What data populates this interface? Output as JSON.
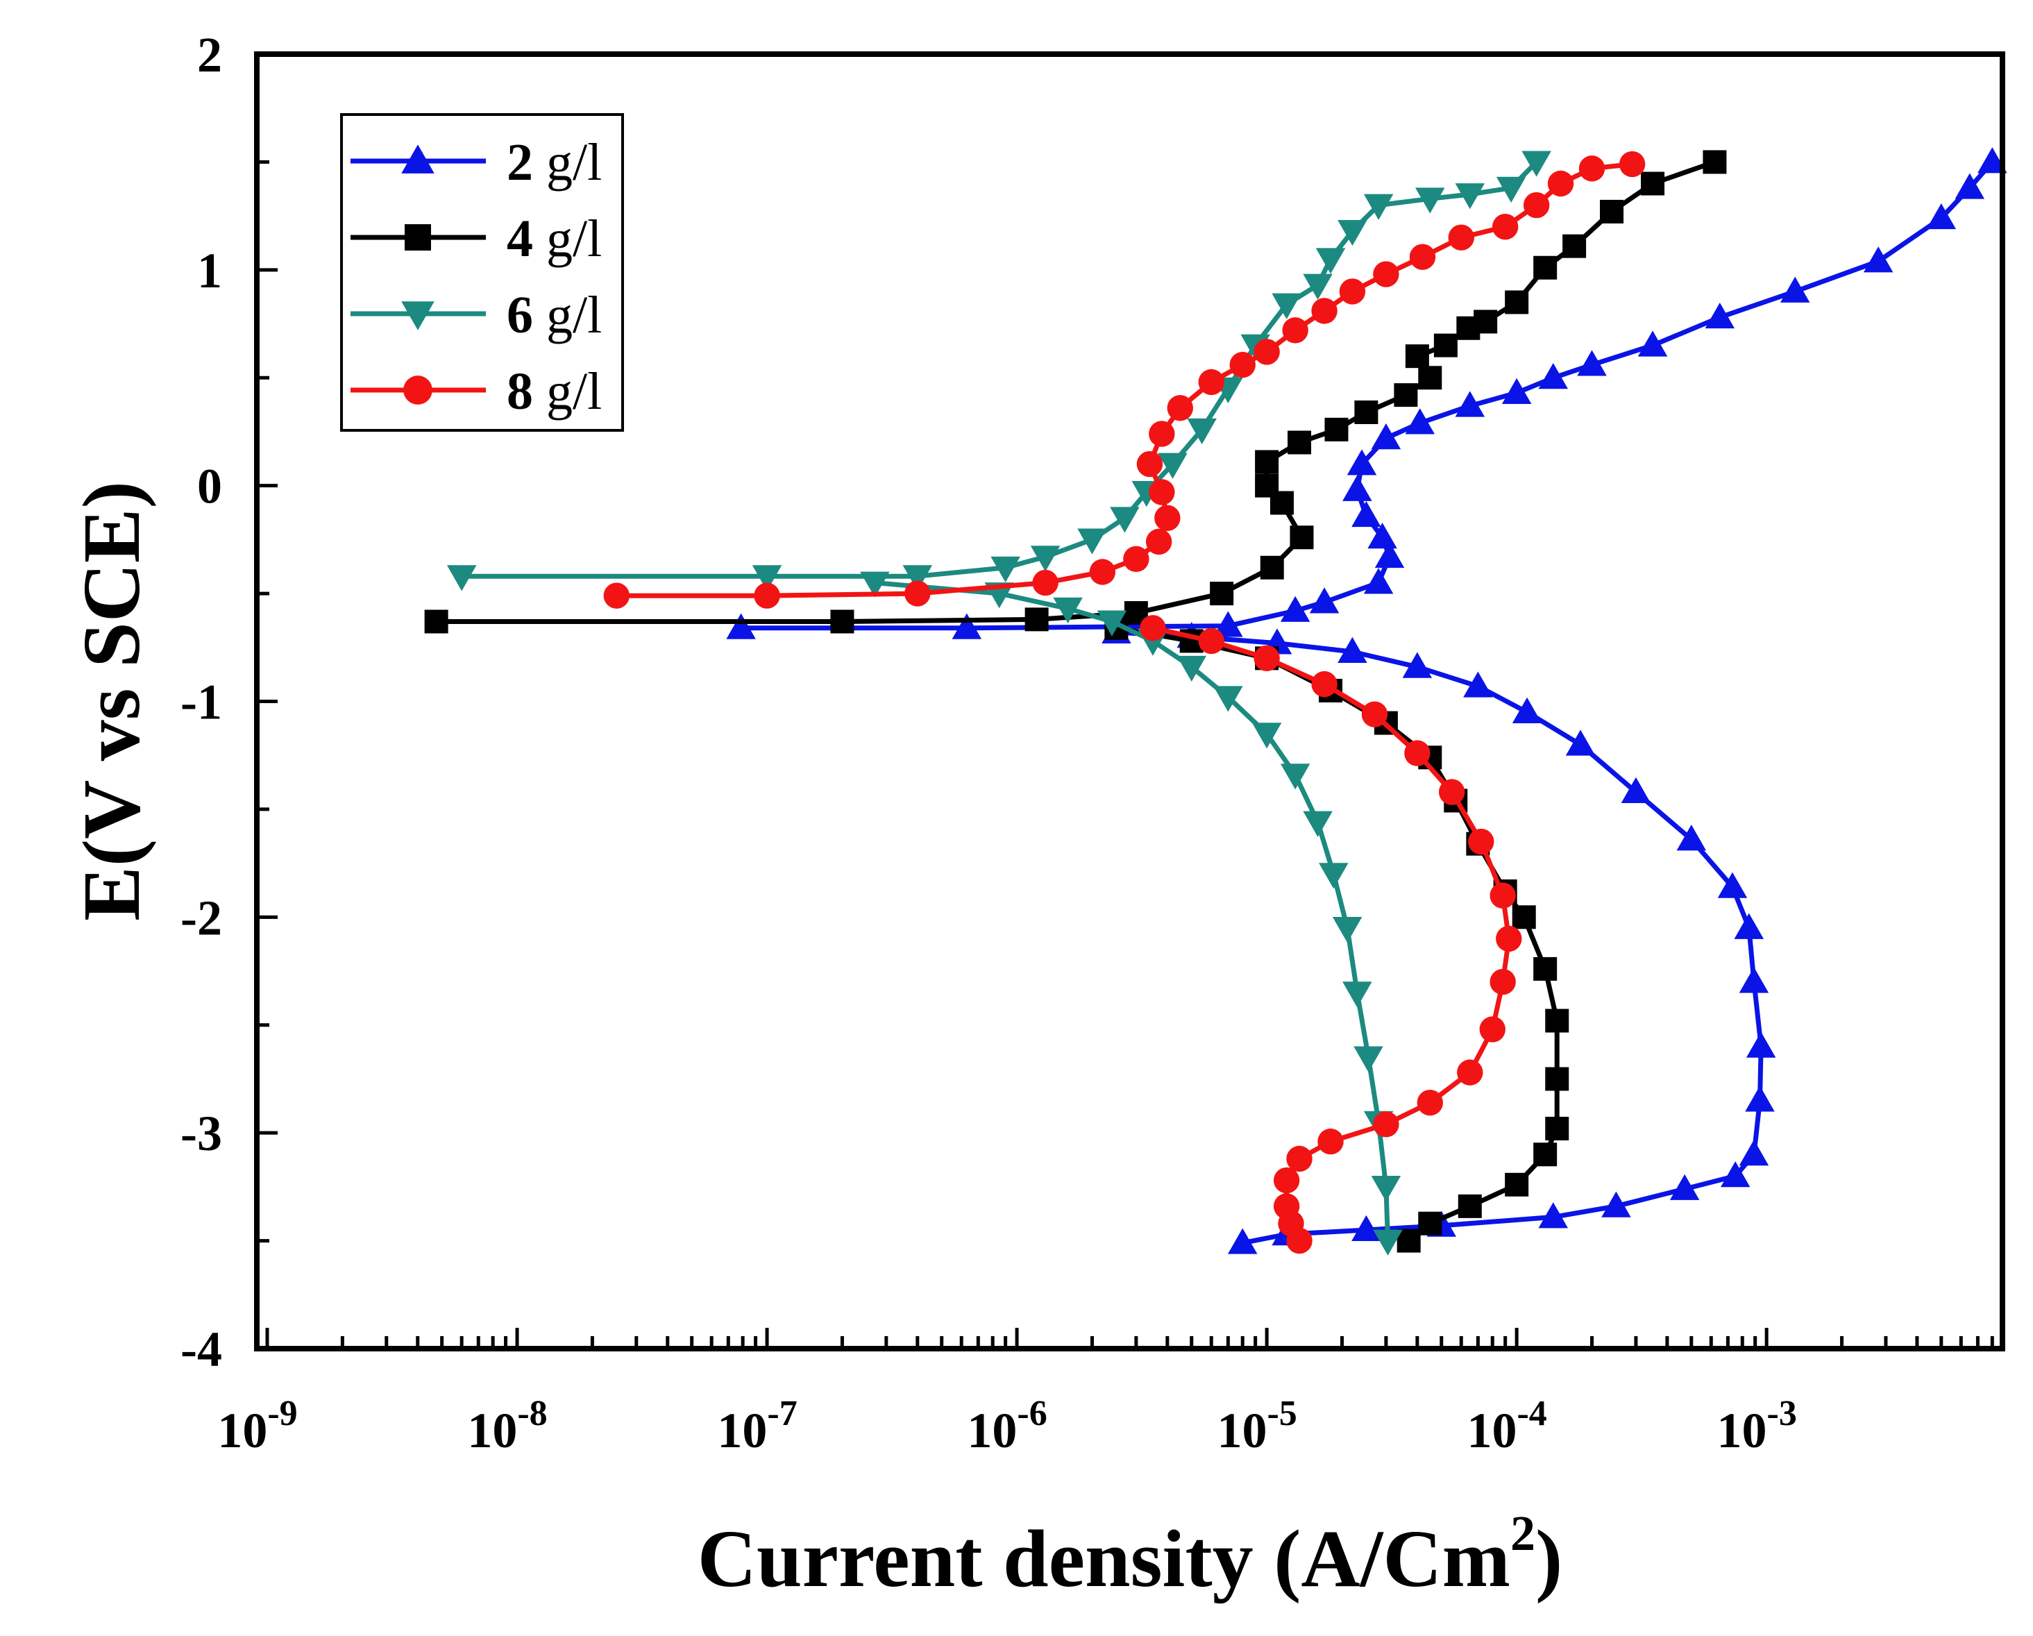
{
  "chart_data": {
    "type": "line",
    "title": "",
    "xlabel": "Current density (A/Cm",
    "xlabel_superscript": "2",
    "xlabel_suffix": ")",
    "ylabel": "E(V vs SCE)",
    "xscale": "log",
    "xlim_log10": [
      -9,
      -2.07
    ],
    "ylim": [
      -4,
      2
    ],
    "x_ticks": [
      {
        "base": "10",
        "exp": "-9"
      },
      {
        "base": "10",
        "exp": "-8"
      },
      {
        "base": "10",
        "exp": "-7"
      },
      {
        "base": "10",
        "exp": "-6"
      },
      {
        "base": "10",
        "exp": "-5"
      },
      {
        "base": "10",
        "exp": "-4"
      },
      {
        "base": "10",
        "exp": "-3"
      }
    ],
    "y_ticks": [
      "-4",
      "-3",
      "-2",
      "-1",
      "0",
      "1",
      "2"
    ],
    "legend_position": "top-left",
    "series": [
      {
        "name": "2 g/l",
        "num": "2",
        "unit": "g/l",
        "color": "#0a14e6",
        "marker": "triangle-up",
        "points": [
          [
            7.87e-08,
            -0.66
          ],
          [
            6.3e-07,
            -0.66
          ],
          [
            7e-06,
            -0.65
          ],
          [
            1.3e-05,
            -0.58
          ],
          [
            1.7e-05,
            -0.54
          ],
          [
            2.8e-05,
            -0.45
          ],
          [
            3.1e-05,
            -0.33
          ],
          [
            2.9e-05,
            -0.24
          ],
          [
            2.5e-05,
            -0.14
          ],
          [
            2.3e-05,
            -0.02
          ],
          [
            2.4e-05,
            0.1
          ],
          [
            3e-05,
            0.22
          ],
          [
            4.1e-05,
            0.29
          ],
          [
            6.5e-05,
            0.37
          ],
          [
            0.0001,
            0.43
          ],
          [
            0.00014,
            0.5
          ],
          [
            0.0002,
            0.56
          ],
          [
            0.00035,
            0.65
          ],
          [
            0.00065,
            0.78
          ],
          [
            0.0013,
            0.9
          ],
          [
            0.0028,
            1.04
          ],
          [
            0.005,
            1.24
          ],
          [
            0.0065,
            1.38
          ],
          [
            0.008,
            1.5
          ],
          [
            null,
            null
          ],
          [
            2.5e-06,
            -0.68
          ],
          [
            5e-06,
            -0.7
          ],
          [
            1.1e-05,
            -0.73
          ],
          [
            2.2e-05,
            -0.77
          ],
          [
            4e-05,
            -0.84
          ],
          [
            7e-05,
            -0.93
          ],
          [
            0.00011,
            -1.05
          ],
          [
            0.00018,
            -1.2
          ],
          [
            0.0003,
            -1.42
          ],
          [
            0.0005,
            -1.64
          ],
          [
            0.00073,
            -1.86
          ],
          [
            0.00085,
            -2.05
          ],
          [
            0.00089,
            -2.3
          ],
          [
            0.00095,
            -2.6
          ],
          [
            0.00094,
            -2.85
          ],
          [
            0.00089,
            -3.1
          ],
          [
            0.00075,
            -3.2
          ],
          [
            0.00047,
            -3.26
          ],
          [
            0.00025,
            -3.34
          ],
          [
            0.00014,
            -3.39
          ],
          [
            5e-05,
            -3.43
          ],
          [
            2.5e-05,
            -3.45
          ],
          [
            1.2e-05,
            -3.47
          ],
          [
            8e-06,
            -3.51
          ]
        ]
      },
      {
        "name": "4 g/l",
        "num": "4",
        "unit": "g/l",
        "color": "#000000",
        "marker": "square",
        "points": [
          [
            4.75e-09,
            -0.63
          ],
          [
            2e-07,
            -0.63
          ],
          [
            1.2e-06,
            -0.62
          ],
          [
            3e-06,
            -0.59
          ],
          [
            6.6e-06,
            -0.5
          ],
          [
            1.05e-05,
            -0.38
          ],
          [
            1.38e-05,
            -0.24
          ],
          [
            1.15e-05,
            -0.08
          ],
          [
            1e-05,
            0.0
          ],
          [
            1e-05,
            0.11
          ],
          [
            1.35e-05,
            0.2
          ],
          [
            1.9e-05,
            0.26
          ],
          [
            2.5e-05,
            0.34
          ],
          [
            3.6e-05,
            0.42
          ],
          [
            4.5e-05,
            0.5
          ],
          [
            4e-05,
            0.6
          ],
          [
            5.2e-05,
            0.65
          ],
          [
            6.4e-05,
            0.73
          ],
          [
            7.5e-05,
            0.76
          ],
          [
            0.0001,
            0.85
          ],
          [
            0.00013,
            1.01
          ],
          [
            0.00017,
            1.11
          ],
          [
            0.00024,
            1.27
          ],
          [
            0.00035,
            1.4
          ],
          [
            0.00062,
            1.5
          ],
          [
            null,
            null
          ],
          [
            2.5e-06,
            -0.66
          ],
          [
            5e-06,
            -0.72
          ],
          [
            1e-05,
            -0.8
          ],
          [
            1.8e-05,
            -0.95
          ],
          [
            3e-05,
            -1.1
          ],
          [
            4.5e-05,
            -1.26
          ],
          [
            5.7e-05,
            -1.46
          ],
          [
            7e-05,
            -1.66
          ],
          [
            9e-05,
            -1.88
          ],
          [
            0.000107,
            -2.0
          ],
          [
            0.00013,
            -2.24
          ],
          [
            0.000145,
            -2.48
          ],
          [
            0.000145,
            -2.75
          ],
          [
            0.000145,
            -2.98
          ],
          [
            0.00013,
            -3.1
          ],
          [
            0.0001,
            -3.24
          ],
          [
            6.5e-05,
            -3.34
          ],
          [
            4.5e-05,
            -3.42
          ],
          [
            3.7e-05,
            -3.5
          ]
        ]
      },
      {
        "name": "6 g/l",
        "num": "6",
        "unit": "g/l",
        "color": "#1c8a80",
        "marker": "triangle-down",
        "points": [
          [
            6e-09,
            -0.42
          ],
          [
            1e-07,
            -0.42
          ],
          [
            4e-07,
            -0.42
          ],
          [
            9e-07,
            -0.38
          ],
          [
            1.3e-06,
            -0.33
          ],
          [
            2e-06,
            -0.25
          ],
          [
            2.7e-06,
            -0.15
          ],
          [
            3.3e-06,
            -0.03
          ],
          [
            4.2e-06,
            0.1
          ],
          [
            5.5e-06,
            0.26
          ],
          [
            7e-06,
            0.45
          ],
          [
            9e-06,
            0.65
          ],
          [
            1.2e-05,
            0.84
          ],
          [
            1.6e-05,
            0.93
          ],
          [
            1.8e-05,
            1.05
          ],
          [
            2.2e-05,
            1.18
          ],
          [
            2.8e-05,
            1.3
          ],
          [
            4.5e-05,
            1.33
          ],
          [
            6.5e-05,
            1.35
          ],
          [
            9.5e-05,
            1.38
          ],
          [
            0.00012,
            1.5
          ],
          [
            null,
            null
          ],
          [
            2.7e-07,
            -0.45
          ],
          [
            8.5e-07,
            -0.5
          ],
          [
            1.6e-06,
            -0.57
          ],
          [
            2.4e-06,
            -0.63
          ],
          [
            3.5e-06,
            -0.72
          ],
          [
            5e-06,
            -0.84
          ],
          [
            7e-06,
            -0.98
          ],
          [
            1e-05,
            -1.15
          ],
          [
            1.3e-05,
            -1.34
          ],
          [
            1.6e-05,
            -1.56
          ],
          [
            1.85e-05,
            -1.8
          ],
          [
            2.1e-05,
            -2.05
          ],
          [
            2.3e-05,
            -2.35
          ],
          [
            2.55e-05,
            -2.65
          ],
          [
            2.8e-05,
            -2.95
          ],
          [
            3e-05,
            -3.25
          ],
          [
            3.05e-05,
            -3.5
          ]
        ]
      },
      {
        "name": "8 g/l",
        "num": "8",
        "unit": "g/l",
        "color": "#f21414",
        "marker": "circle",
        "points": [
          [
            2.5e-08,
            -0.51
          ],
          [
            1e-07,
            -0.51
          ],
          [
            4e-07,
            -0.5
          ],
          [
            1.3e-06,
            -0.45
          ],
          [
            2.2e-06,
            -0.4
          ],
          [
            3e-06,
            -0.34
          ],
          [
            3.7e-06,
            -0.26
          ],
          [
            4e-06,
            -0.15
          ],
          [
            3.8e-06,
            -0.03
          ],
          [
            3.4e-06,
            0.1
          ],
          [
            3.8e-06,
            0.24
          ],
          [
            4.5e-06,
            0.36
          ],
          [
            6e-06,
            0.48
          ],
          [
            8e-06,
            0.56
          ],
          [
            1e-05,
            0.62
          ],
          [
            1.3e-05,
            0.72
          ],
          [
            1.7e-05,
            0.81
          ],
          [
            2.2e-05,
            0.9
          ],
          [
            3e-05,
            0.98
          ],
          [
            4.2e-05,
            1.06
          ],
          [
            6e-05,
            1.15
          ],
          [
            9e-05,
            1.2
          ],
          [
            0.00012,
            1.3
          ],
          [
            0.00015,
            1.4
          ],
          [
            0.0002,
            1.47
          ],
          [
            0.00029,
            1.49
          ],
          [
            null,
            null
          ],
          [
            3.5e-06,
            -0.66
          ],
          [
            6e-06,
            -0.72
          ],
          [
            1e-05,
            -0.8
          ],
          [
            1.7e-05,
            -0.92
          ],
          [
            2.7e-05,
            -1.06
          ],
          [
            4e-05,
            -1.24
          ],
          [
            5.5e-05,
            -1.42
          ],
          [
            7.2e-05,
            -1.65
          ],
          [
            8.8e-05,
            -1.9
          ],
          [
            9.3e-05,
            -2.1
          ],
          [
            8.8e-05,
            -2.3
          ],
          [
            8e-05,
            -2.52
          ],
          [
            6.5e-05,
            -2.72
          ],
          [
            4.5e-05,
            -2.86
          ],
          [
            3e-05,
            -2.96
          ],
          [
            1.8e-05,
            -3.04
          ],
          [
            1.35e-05,
            -3.12
          ],
          [
            1.2e-05,
            -3.22
          ],
          [
            1.2e-05,
            -3.34
          ],
          [
            1.25e-05,
            -3.42
          ],
          [
            1.35e-05,
            -3.5
          ]
        ]
      }
    ]
  }
}
